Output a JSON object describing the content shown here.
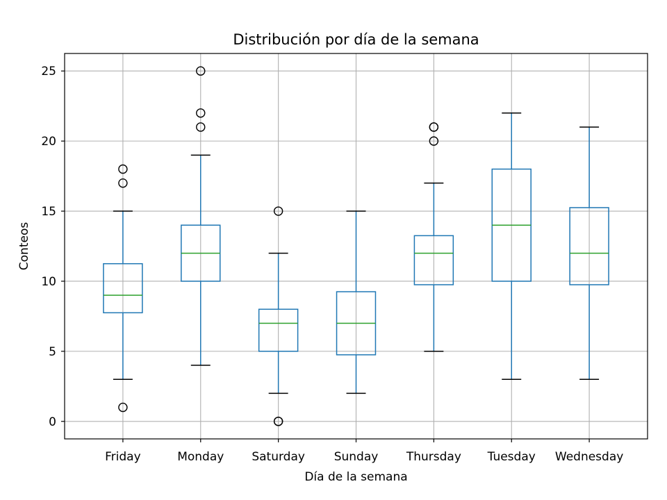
{
  "chart_data": {
    "type": "boxplot",
    "title": "Distribución por día de la semana",
    "xlabel": "Día de la semana",
    "ylabel": "Conteos",
    "ylim": [
      -1.25,
      26.25
    ],
    "yticks": [
      0,
      5,
      10,
      15,
      20,
      25
    ],
    "grid": true,
    "colors": {
      "box": "#1f77b4",
      "median": "#2ca02c",
      "cap": "#000000",
      "flier": "#000000"
    },
    "categories": [
      "Friday",
      "Monday",
      "Saturday",
      "Sunday",
      "Thursday",
      "Tuesday",
      "Wednesday"
    ],
    "boxes": [
      {
        "label": "Friday",
        "whisker_low": 3,
        "q1": 7.75,
        "median": 9,
        "q3": 11.25,
        "whisker_high": 15,
        "fliers": [
          1,
          17,
          18
        ]
      },
      {
        "label": "Monday",
        "whisker_low": 4,
        "q1": 10,
        "median": 12,
        "q3": 14,
        "whisker_high": 19,
        "fliers": [
          21,
          22,
          25
        ]
      },
      {
        "label": "Saturday",
        "whisker_low": 2,
        "q1": 5,
        "median": 7,
        "q3": 8,
        "whisker_high": 12,
        "fliers": [
          0,
          0,
          15
        ]
      },
      {
        "label": "Sunday",
        "whisker_low": 2,
        "q1": 4.75,
        "median": 7,
        "q3": 9.25,
        "whisker_high": 15,
        "fliers": []
      },
      {
        "label": "Thursday",
        "whisker_low": 5,
        "q1": 9.75,
        "median": 12,
        "q3": 13.25,
        "whisker_high": 17,
        "fliers": [
          20,
          21,
          21
        ]
      },
      {
        "label": "Tuesday",
        "whisker_low": 3,
        "q1": 10,
        "median": 14,
        "q3": 18,
        "whisker_high": 22,
        "fliers": []
      },
      {
        "label": "Wednesday",
        "whisker_low": 3,
        "q1": 9.75,
        "median": 12,
        "q3": 15.25,
        "whisker_high": 21,
        "fliers": []
      }
    ]
  }
}
